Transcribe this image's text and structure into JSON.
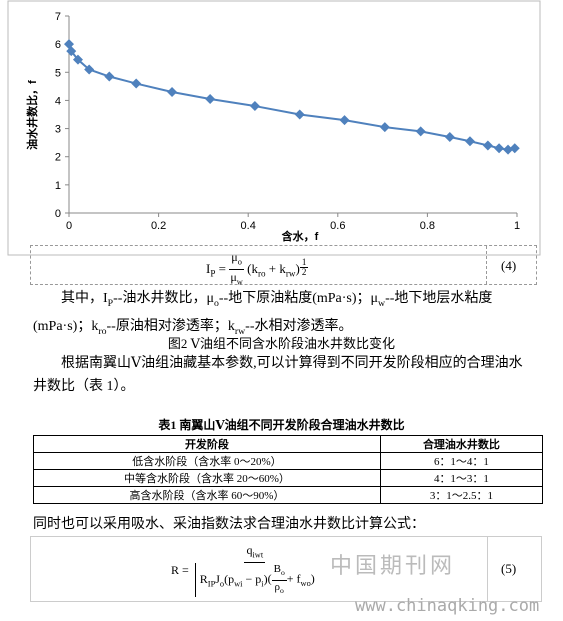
{
  "chart_data": {
    "type": "line",
    "xlabel": "含水，f",
    "ylabel": "油水井数比，f",
    "x": [
      0,
      0.005,
      0.02,
      0.045,
      0.09,
      0.15,
      0.23,
      0.315,
      0.415,
      0.515,
      0.615,
      0.705,
      0.785,
      0.85,
      0.895,
      0.935,
      0.96,
      0.98,
      0.995
    ],
    "series": [
      {
        "color": "#4f81bd",
        "values": [
          6.0,
          5.75,
          5.45,
          5.1,
          4.85,
          4.6,
          4.3,
          4.05,
          3.8,
          3.5,
          3.3,
          3.05,
          2.9,
          2.7,
          2.55,
          2.4,
          2.3,
          2.25,
          2.3
        ]
      }
    ],
    "xlim": [
      0,
      1
    ],
    "xticks": [
      0,
      0.2,
      0.4,
      0.6,
      0.8,
      1
    ],
    "ylim": [
      0,
      7
    ],
    "yticks": [
      0,
      1,
      2,
      3,
      4,
      5,
      6,
      7
    ]
  },
  "formula4": {
    "lhs": "I",
    "lhs_sub": "P",
    "eq": "=",
    "num": "μ",
    "num_sub": "o",
    "den": "μ",
    "den_sub": "w",
    "body": [
      {
        "text": "(k",
        "sub": "ro"
      },
      {
        "text": " + k",
        "sub": "rw"
      },
      {
        "text": ")"
      }
    ],
    "exp_num": "1",
    "exp_den": "2",
    "number": "(4)"
  },
  "paragraph1": [
    {
      "text": "其中，I",
      "sub": "P"
    },
    {
      "text": "--油水井数比，μ",
      "sub": "o"
    },
    {
      "text": "--地下原油粘度(mPa·s)；μ",
      "sub": "w"
    },
    {
      "text": "--地下地层水粘度(mPa·s)；k",
      "sub": "ro"
    },
    {
      "text": "--原油相对渗透率；k",
      "sub": "rw"
    },
    {
      "text": "--水相对渗透率。"
    }
  ],
  "figure_caption": "图2  Ⅴ油组不同含水阶段油水井数比变化",
  "paragraph2": "根据南翼山Ⅴ油组油藏基本参数,可以计算得到不同开发阶段相应的合理油水井数比（表 1）。",
  "table": {
    "title": "表1  南翼山Ⅴ油组不同开发阶段合理油水井数比",
    "header": [
      "开发阶段",
      "合理油水井数比"
    ],
    "rows": [
      [
        "低含水阶段（含水率 0～20%）",
        "6：1～4：1"
      ],
      [
        "中等含水阶段（含水率 20～60%）",
        "4：1～3：1"
      ],
      [
        "高含水阶段（含水率 60～90%）",
        "3：1～2.5：1"
      ]
    ]
  },
  "paragraph3": "同时也可以采用吸水、采油指数法求合理油水井数比计算公式：",
  "formula5": {
    "lhs": "R =",
    "num": "q",
    "num_sub": "iwt",
    "den": [
      {
        "text": "R",
        "sub": "IP"
      },
      {
        "text": "J",
        "sub": "o"
      },
      {
        "text": "(p",
        "sub": "wi"
      },
      {
        "text": " − p",
        "sub": "i"
      },
      {
        "text": ")"
      }
    ],
    "frac_num": "B",
    "frac_num_sub": "o",
    "frac_den": "ρ",
    "frac_den_sub": "o",
    "tail": "+ f",
    "tail_sub": "wo",
    "number": "(5)"
  },
  "watermark": {
    "name": "中国期刊网",
    "url": "www.chinaqking.com"
  }
}
